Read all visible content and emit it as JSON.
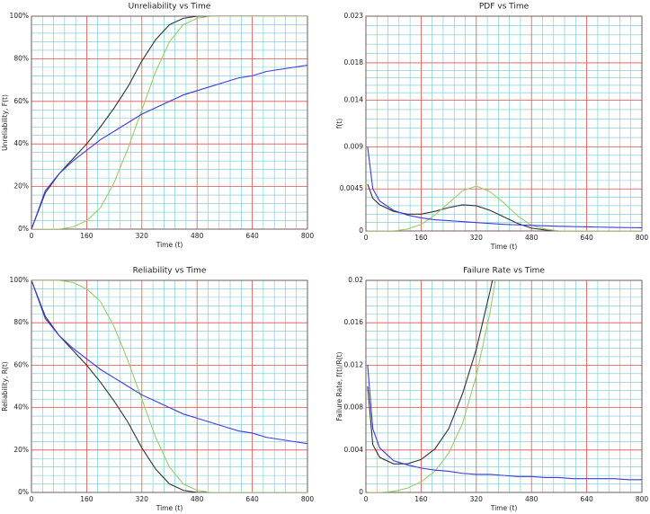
{
  "chart_data": [
    {
      "type": "line",
      "title": "Unreliability vs Time",
      "x_label": "Time (t)",
      "y_label": "Unreliability, F(t)",
      "x": [
        0,
        40,
        80,
        120,
        160,
        200,
        240,
        280,
        320,
        360,
        400,
        440,
        480,
        520,
        560,
        600,
        640,
        680,
        720,
        760,
        800
      ],
      "series": [
        {
          "color": "#333333",
          "values": [
            0,
            17,
            26,
            33,
            40,
            48,
            57,
            67,
            79,
            89,
            96,
            99,
            100,
            100,
            100,
            100,
            100,
            100,
            100,
            100,
            100
          ]
        },
        {
          "color": "#9acd6a",
          "values": [
            0,
            0,
            0,
            1,
            4,
            10,
            22,
            38,
            56,
            74,
            88,
            96,
            99,
            100,
            100,
            100,
            100,
            100,
            100,
            100,
            100
          ]
        },
        {
          "color": "#3b3bdc",
          "values": [
            0,
            18,
            26,
            32,
            37,
            42,
            46,
            50,
            54,
            57,
            60,
            63,
            65,
            67,
            69,
            71,
            72,
            74,
            75,
            76,
            77
          ]
        }
      ],
      "xlim": [
        0,
        800
      ],
      "xticks": [
        0,
        160,
        320,
        480,
        640,
        800
      ],
      "ylim": [
        0,
        100
      ],
      "yticks": [
        {
          "value": 0,
          "label": "0%"
        },
        {
          "value": 20,
          "label": "20%"
        },
        {
          "value": 40,
          "label": "40%"
        },
        {
          "value": 60,
          "label": "60%"
        },
        {
          "value": 80,
          "label": "80%"
        },
        {
          "value": 100,
          "label": "100%"
        }
      ],
      "grid": {
        "major_color": "#e05050",
        "minor_color": "#6cc8d8",
        "minor_per_major": 5
      }
    },
    {
      "type": "line",
      "title": "PDF vs Time",
      "x_label": "Time (t)",
      "y_label": "f(t)",
      "x": [
        5,
        20,
        40,
        80,
        120,
        160,
        200,
        240,
        280,
        320,
        360,
        400,
        440,
        480,
        520,
        560,
        600,
        640,
        680,
        720,
        760,
        800
      ],
      "series": [
        {
          "color": "#333333",
          "values": [
            0.005,
            0.0035,
            0.0028,
            0.0021,
            0.0018,
            0.0018,
            0.0021,
            0.0025,
            0.0028,
            0.0027,
            0.0022,
            0.0015,
            0.0008,
            0.0003,
            0.0001,
            0,
            0,
            0,
            0,
            0,
            0,
            0
          ]
        },
        {
          "color": "#9acd6a",
          "values": [
            0,
            0,
            0,
            0,
            0.0002,
            0.0007,
            0.0017,
            0.003,
            0.0043,
            0.0048,
            0.0042,
            0.003,
            0.0016,
            0.0006,
            0.0002,
            0,
            0,
            0,
            0,
            0,
            0,
            0
          ]
        },
        {
          "color": "#3b3bdc",
          "values": [
            0.009,
            0.0045,
            0.0032,
            0.0022,
            0.0017,
            0.0014,
            0.0012,
            0.0011,
            0.001,
            0.0009,
            0.0008,
            0.0007,
            0.00065,
            0.0006,
            0.00055,
            0.0005,
            0.00047,
            0.00044,
            0.00041,
            0.00038,
            0.00036,
            0.00034
          ]
        }
      ],
      "xlim": [
        0,
        800
      ],
      "xticks": [
        0,
        160,
        320,
        480,
        640,
        800
      ],
      "ylim": [
        0,
        0.023
      ],
      "yticks": [
        0,
        0.0045,
        0.009,
        0.014,
        0.018,
        0.023
      ],
      "grid": {
        "major_color": "#e05050",
        "minor_color": "#6cc8d8",
        "minor_per_major": 5
      }
    },
    {
      "type": "line",
      "title": "Reliability vs Time",
      "x_label": "Time (t)",
      "y_label": "Reliability, R(t)",
      "x": [
        0,
        40,
        80,
        120,
        160,
        200,
        240,
        280,
        320,
        360,
        400,
        440,
        480,
        520,
        560,
        600,
        640,
        680,
        720,
        760,
        800
      ],
      "series": [
        {
          "color": "#333333",
          "values": [
            100,
            83,
            74,
            67,
            60,
            52,
            43,
            33,
            21,
            11,
            4,
            1,
            0,
            0,
            0,
            0,
            0,
            0,
            0,
            0,
            0
          ]
        },
        {
          "color": "#9acd6a",
          "values": [
            100,
            100,
            100,
            99,
            96,
            90,
            78,
            62,
            44,
            26,
            12,
            4,
            1,
            0,
            0,
            0,
            0,
            0,
            0,
            0,
            0
          ]
        },
        {
          "color": "#3b3bdc",
          "values": [
            100,
            82,
            74,
            68,
            63,
            58,
            54,
            50,
            46,
            43,
            40,
            37,
            35,
            33,
            31,
            29,
            28,
            26,
            25,
            24,
            23
          ]
        }
      ],
      "xlim": [
        0,
        800
      ],
      "xticks": [
        0,
        160,
        320,
        480,
        640,
        800
      ],
      "ylim": [
        0,
        100
      ],
      "yticks": [
        {
          "value": 0,
          "label": "0%"
        },
        {
          "value": 20,
          "label": "20%"
        },
        {
          "value": 40,
          "label": "40%"
        },
        {
          "value": 60,
          "label": "60%"
        },
        {
          "value": 80,
          "label": "80%"
        },
        {
          "value": 100,
          "label": "100%"
        }
      ],
      "grid": {
        "major_color": "#e05050",
        "minor_color": "#6cc8d8",
        "minor_per_major": 5
      }
    },
    {
      "type": "line",
      "title": "Failure Rate vs Time",
      "x_label": "Time (t)",
      "y_label": "Failure Rate, f(t)/R(t)",
      "x": [
        5,
        20,
        40,
        80,
        120,
        160,
        200,
        240,
        280,
        320,
        360,
        400,
        440,
        480,
        520,
        560,
        600,
        640,
        680,
        720,
        760,
        800
      ],
      "series": [
        {
          "color": "#333333",
          "values": [
            0.01,
            0.0045,
            0.0033,
            0.0027,
            0.0027,
            0.0031,
            0.0041,
            0.006,
            0.0093,
            0.0135,
            0.019,
            0.025,
            null,
            null,
            null,
            null,
            null,
            null,
            null,
            null,
            null,
            null
          ]
        },
        {
          "color": "#9acd6a",
          "values": [
            0,
            0,
            0,
            0.0001,
            0.0004,
            0.001,
            0.002,
            0.0037,
            0.0065,
            0.011,
            0.017,
            0.025,
            null,
            null,
            null,
            null,
            null,
            null,
            null,
            null,
            null,
            null
          ]
        },
        {
          "color": "#3b3bdc",
          "values": [
            0.012,
            0.006,
            0.0042,
            0.003,
            0.0026,
            0.0023,
            0.0021,
            0.002,
            0.0018,
            0.0017,
            0.0017,
            0.0016,
            0.0015,
            0.0015,
            0.0014,
            0.0014,
            0.0013,
            0.0013,
            0.0013,
            0.0013,
            0.0012,
            0.0012
          ]
        }
      ],
      "xlim": [
        0,
        800
      ],
      "xticks": [
        0,
        160,
        320,
        480,
        640,
        800
      ],
      "ylim": [
        0,
        0.02
      ],
      "yticks": [
        0,
        0.004,
        0.008,
        0.012,
        0.016,
        0.02
      ],
      "grid": {
        "major_color": "#e05050",
        "minor_color": "#6cc8d8",
        "minor_per_major": 5
      }
    }
  ]
}
